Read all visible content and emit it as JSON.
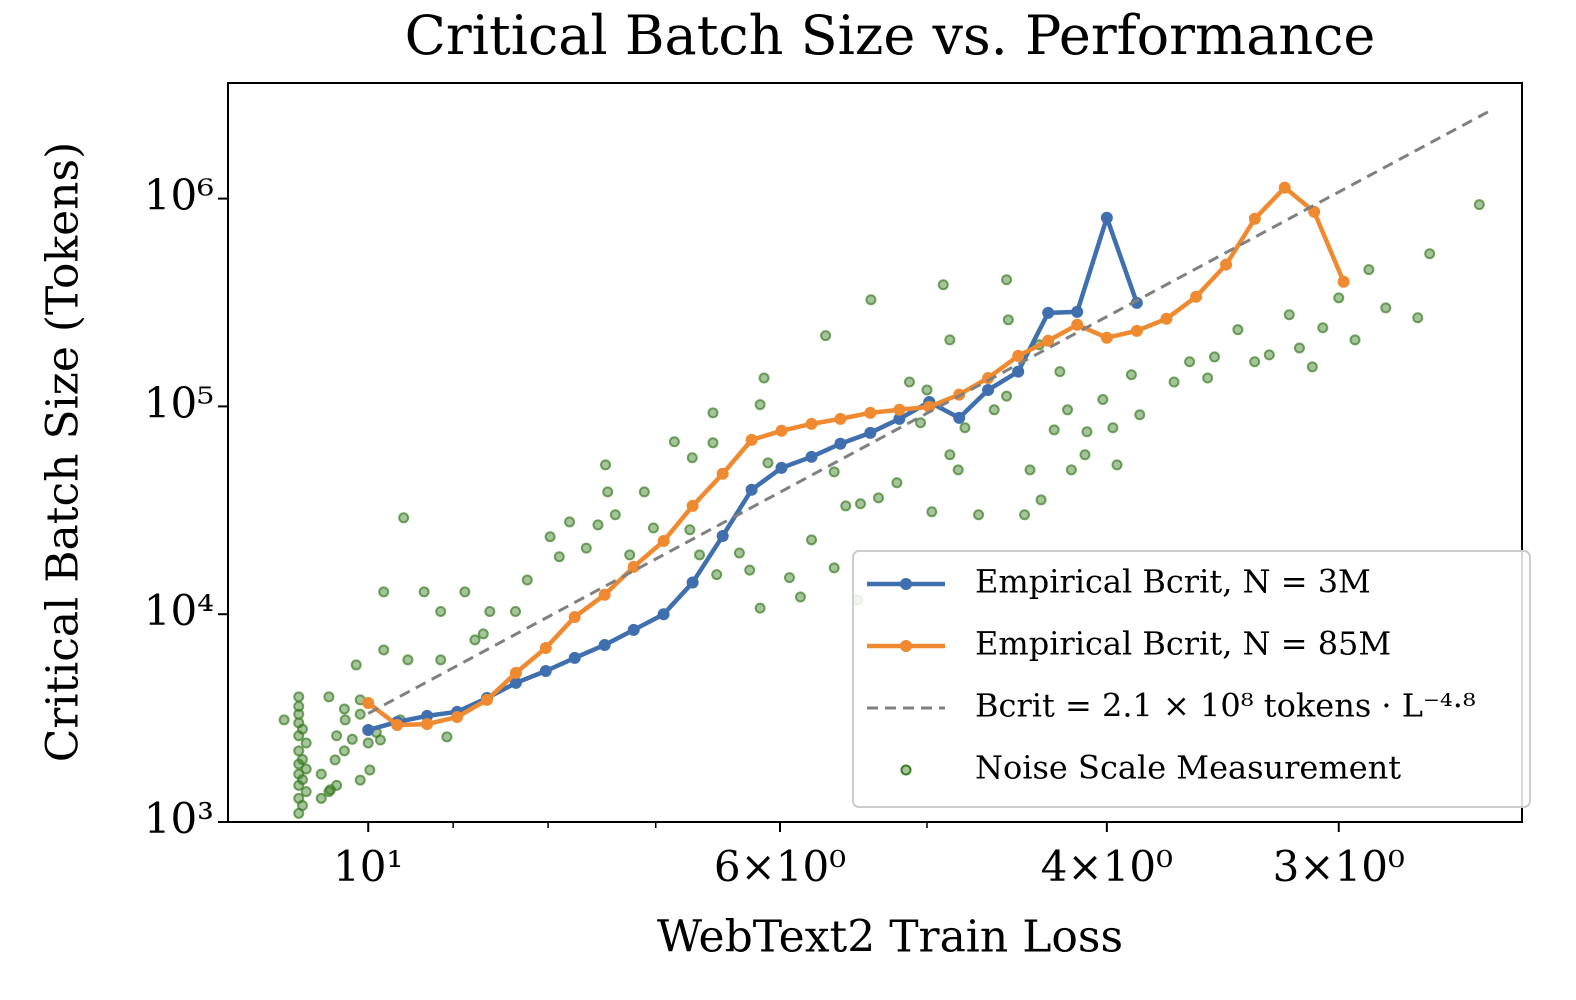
{
  "chart_data": {
    "type": "line",
    "title": "Critical Batch Size vs. Performance",
    "x_label": "WebText2 Train Loss",
    "y_label": "Critical Batch Size (Tokens)",
    "xscale": "log",
    "yscale": "log",
    "xlim": [
      11.9,
      2.39
    ],
    "ylim": [
      1000,
      3600000
    ],
    "xticks": [
      {
        "value": 10,
        "label": "10¹"
      },
      {
        "value": 6,
        "label": "6×10⁰"
      },
      {
        "value": 4,
        "label": "4×10⁰"
      },
      {
        "value": 3,
        "label": "3×10⁰"
      }
    ],
    "xminor_ticks": [
      9,
      8,
      7,
      5
    ],
    "yticks": [
      {
        "value": 1000,
        "label": "10³"
      },
      {
        "value": 10000,
        "label": "10⁴"
      },
      {
        "value": 100000,
        "label": "10⁵"
      },
      {
        "value": 1000000,
        "label": "10⁶"
      }
    ],
    "legend": "lower right",
    "series": [
      {
        "name": "Empirical Bcrit, N = 3M",
        "color": "#3f6fae",
        "style": "line-markers",
        "x": [
          10,
          9.647,
          9.296,
          8.956,
          8.63,
          8.326,
          8.023,
          7.74,
          7.458,
          7.194,
          6.932,
          6.687,
          6.442,
          6.215,
          5.989,
          5.77,
          5.567,
          5.364,
          5.174,
          4.986,
          4.804,
          4.635,
          4.465,
          4.302,
          4.15,
          4.0,
          3.854
        ],
        "values": [
          2770,
          3030,
          3240,
          3390,
          3950,
          4670,
          5330,
          6160,
          7110,
          8400,
          10000,
          14200,
          23800,
          39700,
          50600,
          57200,
          66100,
          74600,
          87100,
          105000,
          88100,
          120000,
          147000,
          282000,
          285000,
          809000,
          315000
        ]
      },
      {
        "name": "Empirical Bcrit, N = 85M",
        "color": "#f08a30",
        "style": "line-markers",
        "x": [
          10,
          9.647,
          9.296,
          8.956,
          8.63,
          8.326,
          8.023,
          7.74,
          7.458,
          7.194,
          6.932,
          6.687,
          6.442,
          6.215,
          5.989,
          5.77,
          5.567,
          5.364,
          5.174,
          4.986,
          4.804,
          4.635,
          4.465,
          4.302,
          4.15,
          4.0,
          3.854,
          3.715,
          3.581,
          3.45,
          3.329,
          3.208,
          3.093,
          2.982
        ],
        "values": [
          3740,
          2930,
          2960,
          3200,
          3870,
          5220,
          6880,
          9700,
          12400,
          16900,
          22500,
          33200,
          47400,
          69000,
          76300,
          82400,
          87100,
          93100,
          96300,
          99500,
          114000,
          137000,
          175000,
          207000,
          247000,
          214000,
          231000,
          264000,
          337000,
          481000,
          800000,
          1130000,
          864000,
          398000
        ]
      },
      {
        "name": "Bcrit = 2.1 × 10⁸ tokens · L⁻⁴·⁸",
        "color": "#808080",
        "style": "dashed",
        "x": [
          10,
          2.49
        ],
        "values": [
          3329,
          2630000
        ]
      },
      {
        "name": "Noise Scale Measurement",
        "color": "#3a7d22",
        "style": "markers",
        "x": [
          10.9,
          10.85,
          10.9,
          10.8,
          10.9,
          10.85,
          10.9,
          10.8,
          10.9,
          10.85,
          10.9,
          10.8,
          10.9,
          10.85,
          10.9,
          10.9,
          10.9,
          10.9,
          11.1,
          10.6,
          10.5,
          10.4,
          10.6,
          10.3,
          10.2,
          10.4,
          10.1,
          10.3,
          10.0,
          9.9,
          10.5,
          9.81,
          9.57,
          9.81,
          9.33,
          9.14,
          8.87,
          9.14,
          9.07,
          8.67,
          8.33,
          8.21,
          7.98,
          7.89,
          7.45,
          7.43,
          7.36,
          7.23,
          7.1,
          6.84,
          6.69,
          6.52,
          6.52,
          6.31,
          6.49,
          6.15,
          6.12,
          6.09,
          5.93,
          5.85,
          5.77,
          5.67,
          5.61,
          5.53,
          5.43,
          5.36,
          5.31,
          5.19,
          5.11,
          5.04,
          4.97,
          4.9,
          4.86,
          4.81,
          4.77,
          4.69,
          4.53,
          4.53,
          4.43,
          4.4,
          4.34,
          4.27,
          4.24,
          4.2,
          4.18,
          4.1,
          4.02,
          3.97,
          3.88,
          3.84,
          3.68,
          3.61,
          3.53,
          3.5,
          3.4,
          3.33,
          3.27,
          3.19,
          3.15,
          3.1,
          3.06,
          3.0,
          2.94,
          2.89,
          2.83,
          2.72,
          2.68,
          2.52,
          3.95,
          4.11,
          4.35,
          4.52,
          4.6,
          4.86,
          5.0,
          5.45,
          5.61,
          6.15,
          6.23,
          6.63,
          6.71,
          7.02,
          7.52,
          7.79,
          7.63,
          8.6,
          8.76,
          9.52,
          10.15,
          10.1,
          10.29,
          10.42,
          10.48,
          9.85,
          9.61,
          10.1,
          9.98
        ],
        "values": [
          1100,
          1200,
          1300,
          1400,
          1500,
          1600,
          1700,
          1800,
          1900,
          2000,
          2200,
          2400,
          2600,
          2800,
          3000,
          3300,
          3600,
          4000,
          3100,
          1300,
          1400,
          1500,
          1700,
          2200,
          2500,
          2600,
          3300,
          3500,
          2400,
          2700,
          4000,
          6730,
          29100,
          12800,
          12800,
          10300,
          12800,
          6030,
          2570,
          8040,
          10300,
          14600,
          23600,
          18900,
          52300,
          38800,
          30100,
          19300,
          38800,
          67600,
          56600,
          93100,
          66800,
          19700,
          15500,
          102000,
          137000,
          53500,
          15000,
          12100,
          22800,
          219000,
          48400,
          33200,
          34000,
          326000,
          36300,
          42900,
          131000,
          83400,
          31100,
          385000,
          58500,
          49500,
          78900,
          30100,
          407000,
          112000,
          30100,
          49500,
          35500,
          77100,
          147000,
          96300,
          49500,
          75500,
          108000,
          78900,
          142000,
          91200,
          131000,
          164000,
          137000,
          173000,
          234000,
          164000,
          177000,
          276000,
          191000,
          155000,
          239000,
          333000,
          209000,
          455000,
          298000,
          267000,
          543000,
          935000,
          52300,
          58500,
          198000,
          261000,
          96300,
          209000,
          120000,
          11700,
          16700,
          10700,
          16300,
          19300,
          25500,
          26000,
          26900,
          27800,
          20800,
          10300,
          7520,
          6030,
          5700,
          3870,
          3100,
          1990,
          1430,
          2480,
          3100,
          1590,
          1780
        ]
      }
    ]
  }
}
